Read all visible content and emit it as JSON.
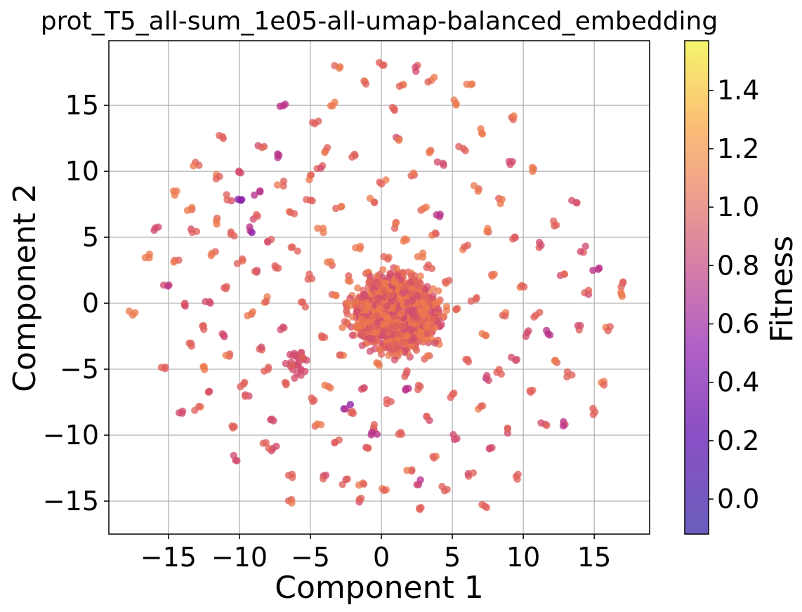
{
  "chart_data": {
    "type": "scatter",
    "title": "prot_T5_all-sum_1e05-all-umap-balanced_embedding",
    "xlabel": "Component 1",
    "ylabel": "Component 2",
    "xlim": [
      -19.2,
      18.9
    ],
    "ylim": [
      -17.5,
      19.9
    ],
    "xticks": [
      -15,
      -10,
      -5,
      0,
      5,
      10,
      15
    ],
    "yticks": [
      -15,
      -10,
      -5,
      0,
      5,
      10,
      15
    ],
    "xtick_labels": [
      "−15",
      "−10",
      "−5",
      "0",
      "5",
      "10",
      "15"
    ],
    "ytick_labels": [
      "−15",
      "−10",
      "−5",
      "0",
      "5",
      "10",
      "15"
    ],
    "grid": true,
    "colorbar": {
      "label": "Fitness",
      "colormap": "plasma",
      "range": [
        -0.12,
        1.57
      ],
      "ticks": [
        0.0,
        0.2,
        0.4,
        0.6,
        0.8,
        1.0,
        1.2,
        1.4
      ],
      "tick_labels": [
        "0.0",
        "0.2",
        "0.4",
        "0.6",
        "0.8",
        "1.0",
        "1.2",
        "1.4"
      ]
    },
    "points": [
      [
        -17.6,
        -0.8,
        0.95
      ],
      [
        -16.5,
        3.6,
        0.95
      ],
      [
        -15.9,
        5.6,
        0.7
      ],
      [
        -15.4,
        -4.8,
        0.9
      ],
      [
        -15.2,
        1.4,
        0.6
      ],
      [
        -14.6,
        8.4,
        1.0
      ],
      [
        -14.5,
        3.3,
        0.9
      ],
      [
        -14.0,
        -8.2,
        0.7
      ],
      [
        -13.9,
        -0.1,
        0.8
      ],
      [
        -13.6,
        -3.1,
        0.9
      ],
      [
        -13.5,
        7.0,
        0.95
      ],
      [
        -13.2,
        5.4,
        0.8
      ],
      [
        -13.0,
        10.5,
        0.9
      ],
      [
        -12.9,
        -8.0,
        0.85
      ],
      [
        -12.6,
        -1.8,
        0.85
      ],
      [
        -12.4,
        -4.9,
        0.95
      ],
      [
        -12.2,
        0.1,
        0.7
      ],
      [
        -12.1,
        -6.5,
        0.8
      ],
      [
        -11.8,
        3.8,
        0.9
      ],
      [
        -11.5,
        6.2,
        0.95
      ],
      [
        -11.3,
        12.6,
        0.85
      ],
      [
        -11.2,
        -2.3,
        0.8
      ],
      [
        -11.0,
        1.2,
        0.85
      ],
      [
        -10.9,
        -3.9,
        0.9
      ],
      [
        -10.8,
        8.0,
        0.8
      ],
      [
        -10.6,
        -9.5,
        0.9
      ],
      [
        -10.3,
        -11.7,
        0.6
      ],
      [
        -10.0,
        3.2,
        0.9
      ],
      [
        -10.0,
        7.7,
        0.4
      ],
      [
        -9.9,
        10.1,
        0.8
      ],
      [
        -9.7,
        -6.2,
        0.85
      ],
      [
        -9.4,
        -7.1,
        0.8
      ],
      [
        -9.3,
        -0.8,
        0.9
      ],
      [
        -9.0,
        2.4,
        0.8
      ],
      [
        -8.9,
        6.6,
        0.85
      ],
      [
        -8.7,
        8.4,
        0.5
      ],
      [
        -8.5,
        11.8,
        0.8
      ],
      [
        -8.4,
        -3.3,
        0.8
      ],
      [
        -8.2,
        -5.0,
        0.85
      ],
      [
        -8.0,
        0.3,
        0.9
      ],
      [
        -7.8,
        4.8,
        0.85
      ],
      [
        -7.7,
        -9.0,
        0.8
      ],
      [
        -7.5,
        -11.0,
        0.7
      ],
      [
        -7.4,
        2.9,
        0.9
      ],
      [
        -7.1,
        9.1,
        0.9
      ],
      [
        -7.0,
        -1.8,
        0.8
      ],
      [
        -6.9,
        14.9,
        0.5
      ],
      [
        -6.7,
        -6.0,
        0.85
      ],
      [
        -6.5,
        -13.2,
        0.85
      ],
      [
        -6.3,
        6.9,
        0.95
      ],
      [
        -6.1,
        4.1,
        0.85
      ],
      [
        -5.8,
        -4.6,
        0.75
      ],
      [
        -6.3,
        -4.9,
        0.7
      ],
      [
        -6.0,
        -4.2,
        0.75
      ],
      [
        -5.6,
        -5.0,
        0.75
      ],
      [
        -6.5,
        -4.5,
        0.8
      ],
      [
        -5.9,
        -5.5,
        0.7
      ],
      [
        -5.4,
        -4.3,
        0.8
      ],
      [
        -6.2,
        -3.8,
        0.7
      ],
      [
        -5.7,
        -3.9,
        0.85
      ],
      [
        -5.5,
        -0.1,
        0.85
      ],
      [
        -5.2,
        9.6,
        0.9
      ],
      [
        -5.0,
        2.0,
        0.9
      ],
      [
        -4.8,
        -7.4,
        0.85
      ],
      [
        -4.6,
        13.8,
        0.85
      ],
      [
        -4.5,
        -9.4,
        0.9
      ],
      [
        -4.3,
        5.6,
        0.95
      ],
      [
        -4.1,
        -2.7,
        0.85
      ],
      [
        -4.0,
        11.6,
        0.85
      ],
      [
        -3.8,
        -6.3,
        0.9
      ],
      [
        -3.6,
        3.1,
        0.95
      ],
      [
        -3.4,
        0.8,
        0.9
      ],
      [
        -3.2,
        -10.5,
        0.8
      ],
      [
        -3.1,
        17.8,
        0.95
      ],
      [
        -3.0,
        7.4,
        0.9
      ],
      [
        -2.8,
        -4.0,
        0.9
      ],
      [
        -2.6,
        -13.5,
        0.8
      ],
      [
        -2.5,
        -1.6,
        0.95
      ],
      [
        -2.2,
        1.9,
        0.95
      ],
      [
        -2.0,
        -8.3,
        0.9
      ],
      [
        -1.9,
        11.2,
        0.9
      ],
      [
        -1.7,
        4.3,
        0.95
      ],
      [
        -1.5,
        -0.9,
        0.85
      ],
      [
        -1.3,
        -6.6,
        0.85
      ],
      [
        -1.2,
        16.8,
        0.9
      ],
      [
        -1.0,
        -11.1,
        0.8
      ],
      [
        -0.9,
        2.5,
        0.9
      ],
      [
        -0.7,
        -2.7,
        0.95
      ],
      [
        -0.6,
        7.8,
        0.9
      ],
      [
        -0.4,
        -9.4,
        0.85
      ],
      [
        -0.2,
        1.1,
        0.95
      ],
      [
        -0.1,
        -4.6,
        0.9
      ],
      [
        0.0,
        18.2,
        0.85
      ],
      [
        0.1,
        9.2,
        0.9
      ],
      [
        0.2,
        -0.5,
        0.95
      ],
      [
        0.3,
        -14.1,
        0.9
      ],
      [
        0.4,
        3.4,
        0.95
      ],
      [
        0.5,
        -2.1,
        0.9
      ],
      [
        0.6,
        -7.5,
        0.85
      ],
      [
        0.7,
        0.8,
        1.0
      ],
      [
        0.8,
        5.9,
        0.9
      ],
      [
        0.9,
        -1.2,
        0.9
      ],
      [
        1.0,
        -3.6,
        0.95
      ],
      [
        1.1,
        12.5,
        0.85
      ],
      [
        1.2,
        -10.0,
        0.9
      ],
      [
        1.3,
        2.1,
        0.95
      ],
      [
        1.4,
        -0.4,
        0.9
      ],
      [
        1.5,
        16.6,
        0.9
      ],
      [
        1.6,
        -5.3,
        0.85
      ],
      [
        1.7,
        4.8,
        0.95
      ],
      [
        1.8,
        -1.9,
        0.9
      ],
      [
        1.9,
        0.7,
        0.95
      ],
      [
        2.0,
        -12.6,
        0.9
      ],
      [
        2.1,
        9.8,
        0.9
      ],
      [
        2.2,
        -3.1,
        0.85
      ],
      [
        2.3,
        1.6,
        0.95
      ],
      [
        2.4,
        -0.8,
        0.9
      ],
      [
        2.5,
        17.8,
        0.85
      ],
      [
        2.6,
        -6.4,
        0.9
      ],
      [
        2.7,
        3.6,
        0.95
      ],
      [
        2.8,
        -2.3,
        0.9
      ],
      [
        2.9,
        -15.6,
        0.85
      ],
      [
        3.0,
        7.1,
        0.95
      ],
      [
        3.1,
        0.2,
        0.95
      ],
      [
        3.2,
        -4.2,
        0.9
      ],
      [
        3.3,
        -8.8,
        0.85
      ],
      [
        3.4,
        2.7,
        0.9
      ],
      [
        3.5,
        17.0,
        0.95
      ],
      [
        3.6,
        -1.4,
        0.9
      ],
      [
        3.7,
        5.2,
        0.95
      ],
      [
        3.8,
        -11.5,
        0.9
      ],
      [
        4.0,
        -2.9,
        0.95
      ],
      [
        4.2,
        10.7,
        0.7
      ],
      [
        4.4,
        -14.0,
        0.85
      ],
      [
        4.6,
        1.5,
        0.9
      ],
      [
        4.9,
        -6.9,
        0.85
      ],
      [
        5.1,
        15.2,
        1.0
      ],
      [
        5.3,
        -10.1,
        0.85
      ],
      [
        5.5,
        -0.6,
        0.95
      ],
      [
        5.7,
        11.8,
        0.9
      ],
      [
        5.9,
        4.3,
        0.9
      ],
      [
        6.1,
        -4.2,
        0.9
      ],
      [
        6.3,
        -13.1,
        0.85
      ],
      [
        6.5,
        0.4,
        0.85
      ],
      [
        6.7,
        8.7,
        0.95
      ],
      [
        6.9,
        -7.9,
        0.85
      ],
      [
        7.1,
        13.0,
        1.05
      ],
      [
        7.3,
        -2.4,
        0.95
      ],
      [
        7.6,
        5.6,
        0.9
      ],
      [
        7.8,
        -11.2,
        0.8
      ],
      [
        8.0,
        2.0,
        0.95
      ],
      [
        8.2,
        -5.2,
        0.85
      ],
      [
        8.4,
        7.8,
        0.9
      ],
      [
        8.6,
        -0.9,
        0.9
      ],
      [
        8.8,
        -9.6,
        0.85
      ],
      [
        9.1,
        10.6,
        0.7
      ],
      [
        9.3,
        -4.3,
        0.7
      ],
      [
        9.5,
        4.8,
        0.85
      ],
      [
        9.7,
        -13.1,
        0.9
      ],
      [
        9.9,
        1.1,
        0.9
      ],
      [
        10.2,
        -2.3,
        0.7
      ],
      [
        10.5,
        -6.7,
        0.85
      ],
      [
        10.7,
        10.1,
        0.9
      ],
      [
        11.0,
        -0.8,
        0.85
      ],
      [
        11.2,
        4.4,
        0.8
      ],
      [
        11.5,
        -9.2,
        0.8
      ],
      [
        11.8,
        -2.2,
        0.6
      ],
      [
        12.1,
        6.0,
        0.85
      ],
      [
        12.4,
        -4.3,
        0.9
      ],
      [
        12.7,
        2.3,
        0.85
      ],
      [
        13.0,
        -9.1,
        0.6
      ],
      [
        13.3,
        -5.4,
        0.85
      ],
      [
        13.6,
        7.7,
        0.85
      ],
      [
        13.9,
        -1.9,
        0.8
      ],
      [
        14.2,
        4.1,
        0.85
      ],
      [
        14.5,
        0.9,
        0.8
      ],
      [
        14.8,
        -8.2,
        0.85
      ],
      [
        15.1,
        2.6,
        0.6
      ],
      [
        15.6,
        -6.0,
        0.9
      ],
      [
        16.0,
        -2.0,
        0.9
      ],
      [
        16.8,
        1.4,
        0.85
      ],
      [
        17.1,
        0.7,
        1.0
      ],
      [
        -8.1,
        -10.8,
        0.85
      ],
      [
        -3.9,
        -13.2,
        0.8
      ],
      [
        2.7,
        -13.5,
        0.6
      ],
      [
        -6.5,
        -14.9,
        0.95
      ],
      [
        -1.5,
        -15.0,
        0.85
      ],
      [
        7.2,
        -15.5,
        0.85
      ],
      [
        -10.6,
        5.3,
        0.85
      ],
      [
        -5.1,
        7.7,
        0.9
      ],
      [
        0.7,
        14.7,
        0.9
      ],
      [
        6.2,
        16.8,
        0.95
      ],
      [
        -3.5,
        15.2,
        0.9
      ],
      [
        9.3,
        14.0,
        0.9
      ],
      [
        -11.4,
        9.5,
        0.9
      ],
      [
        -0.5,
        -9.8,
        0.5
      ],
      [
        -7.2,
        11.2,
        0.55
      ],
      [
        4.1,
        6.7,
        0.6
      ],
      [
        -2.4,
        -7.9,
        0.45
      ],
      [
        1.8,
        -6.7,
        0.55
      ],
      [
        -9.3,
        5.6,
        0.5
      ],
      [
        7.4,
        -5.7,
        0.6
      ],
      [
        3.4,
        11.4,
        0.95
      ],
      [
        -4.3,
        10.4,
        0.8
      ],
      [
        -1.4,
        -13.7,
        0.9
      ]
    ],
    "core_cluster": {
      "center": [
        1.0,
        -0.8
      ],
      "radius": [
        3.2,
        3.0
      ],
      "fitness": [
        0.7,
        1.05
      ]
    }
  }
}
